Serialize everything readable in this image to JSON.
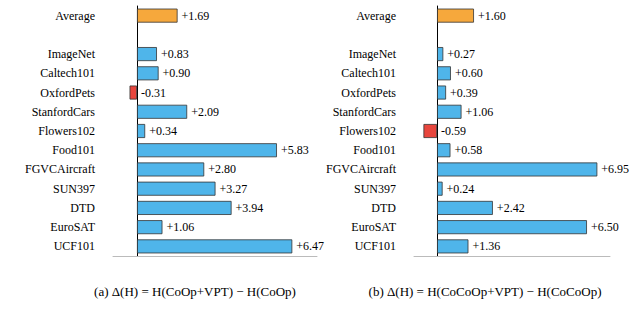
{
  "chart_data": [
    {
      "type": "bar",
      "orientation": "horizontal",
      "title": "(a) Δ(H) = H(CoOp+VPT) − H(CoOp)",
      "categories": [
        "Average",
        null,
        "ImageNet",
        "Caltech101",
        "OxfordPets",
        "StanfordCars",
        "Flowers102",
        "Food101",
        "FGVCAircraft",
        "SUN397",
        "DTD",
        "EuroSAT",
        "UCF101"
      ],
      "values": [
        1.69,
        null,
        0.83,
        0.9,
        -0.31,
        2.09,
        0.34,
        5.83,
        2.8,
        3.27,
        3.94,
        1.06,
        6.47
      ],
      "value_labels": [
        "+1.69",
        null,
        "+0.83",
        "+0.90",
        "-0.31",
        "+2.09",
        "+0.34",
        "+5.83",
        "+2.80",
        "+3.27",
        "+3.94",
        "+1.06",
        "+6.47"
      ],
      "colors": [
        "#f6a83c",
        null,
        "#4fb5ea",
        "#4fb5ea",
        "#e8463d",
        "#4fb5ea",
        "#4fb5ea",
        "#4fb5ea",
        "#4fb5ea",
        "#4fb5ea",
        "#4fb5ea",
        "#4fb5ea",
        "#4fb5ea"
      ],
      "xlim": [
        -1,
        7.5
      ],
      "grid": false,
      "data_labels": true,
      "tick_labels": "y"
    },
    {
      "type": "bar",
      "orientation": "horizontal",
      "title": "(b) Δ(H) = H(CoCoOp+VPT) − H(CoCoOp)",
      "categories": [
        "Average",
        null,
        "ImageNet",
        "Caltech101",
        "OxfordPets",
        "StanfordCars",
        "Flowers102",
        "Food101",
        "FGVCAircraft",
        "SUN397",
        "DTD",
        "EuroSAT",
        "UCF101"
      ],
      "values": [
        1.6,
        null,
        0.27,
        0.6,
        0.39,
        1.06,
        -0.59,
        0.58,
        6.95,
        0.24,
        2.42,
        6.5,
        1.36
      ],
      "value_labels": [
        "+1.60",
        null,
        "+0.27",
        "+0.60",
        "+0.39",
        "+1.06",
        "-0.59",
        "+0.58",
        "+6.95",
        "+0.24",
        "+2.42",
        "+6.50",
        "+1.36"
      ],
      "colors": [
        "#f6a83c",
        null,
        "#4fb5ea",
        "#4fb5ea",
        "#4fb5ea",
        "#4fb5ea",
        "#e8463d",
        "#4fb5ea",
        "#4fb5ea",
        "#4fb5ea",
        "#4fb5ea",
        "#4fb5ea",
        "#4fb5ea"
      ],
      "xlim": [
        -1,
        7.5
      ],
      "grid": false,
      "data_labels": true,
      "tick_labels": "y"
    }
  ]
}
